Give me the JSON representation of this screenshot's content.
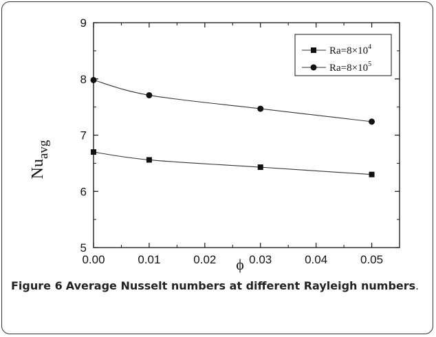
{
  "chart_data": {
    "type": "line",
    "x": [
      0.0,
      0.01,
      0.03,
      0.05
    ],
    "series": [
      {
        "name_base": "Ra=8×10",
        "name_exp": "4",
        "marker": "square",
        "values": [
          6.7,
          6.56,
          6.43,
          6.3
        ]
      },
      {
        "name_base": "Ra=8×10",
        "name_exp": "5",
        "marker": "circle",
        "values": [
          7.98,
          7.71,
          7.47,
          7.24
        ]
      }
    ],
    "xlim": [
      0.0,
      0.055
    ],
    "ylim": [
      5,
      9
    ],
    "xticks": [
      "0.00",
      "0.01",
      "0.02",
      "0.03",
      "0.04",
      "0.05"
    ],
    "yticks": [
      "5",
      "6",
      "7",
      "8",
      "9"
    ],
    "xlabel": "ϕ",
    "ylabel_base": "Nu",
    "ylabel_sub": "avg",
    "legend_position": "top-right",
    "grid": false
  },
  "caption": {
    "label": "Figure 6",
    "text": "Average Nusselt numbers at different Rayleigh numbers",
    "period": "."
  }
}
